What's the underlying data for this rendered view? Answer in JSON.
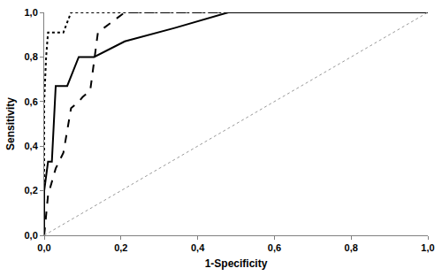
{
  "chart_data": {
    "type": "line",
    "x_label": "1-Specificity",
    "y_label": "Sensitivity",
    "xlim": [
      0,
      1
    ],
    "ylim": [
      0,
      1
    ],
    "xticks": [
      {
        "value": 0,
        "label": "0,0"
      },
      {
        "value": 0.2,
        "label": "0,2"
      },
      {
        "value": 0.4,
        "label": "0,4"
      },
      {
        "value": 0.6,
        "label": "0,6"
      },
      {
        "value": 0.8,
        "label": "0,8"
      },
      {
        "value": 1,
        "label": "1,0"
      }
    ],
    "yticks": [
      {
        "value": 0,
        "label": "0,0"
      },
      {
        "value": 0.2,
        "label": "0,2"
      },
      {
        "value": 0.4,
        "label": "0,4"
      },
      {
        "value": 0.6,
        "label": "0,6"
      },
      {
        "value": 0.8,
        "label": "0,8"
      },
      {
        "value": 1,
        "label": "1,0"
      }
    ],
    "grid": false,
    "series": [
      {
        "color": "#000000",
        "line_style": "dot",
        "x": [
          0,
          0,
          0.005,
          0.01,
          0.05,
          0.07,
          1
        ],
        "values": [
          0,
          0.6,
          0.8,
          0.91,
          0.91,
          1.0,
          1.0
        ]
      },
      {
        "color": "#000000",
        "line_style": "dash",
        "x": [
          0,
          0.005,
          0.01,
          0.03,
          0.05,
          0.07,
          0.09,
          0.1,
          0.12,
          0.14,
          0.21,
          1
        ],
        "values": [
          0,
          0.1,
          0.18,
          0.3,
          0.37,
          0.57,
          0.6,
          0.62,
          0.65,
          0.91,
          1.0,
          1.0
        ]
      },
      {
        "color": "#000000",
        "line_style": "solid",
        "x": [
          0,
          0,
          0.01,
          0.02,
          0.03,
          0.06,
          0.09,
          0.13,
          0.21,
          0.34,
          0.48,
          1
        ],
        "values": [
          0,
          0.2,
          0.33,
          0.33,
          0.67,
          0.67,
          0.8,
          0.8,
          0.87,
          0.93,
          1.0,
          1.0
        ]
      },
      {
        "color": "#999999",
        "line_style": "dot",
        "x": [
          0,
          1
        ],
        "values": [
          0,
          1
        ]
      }
    ]
  }
}
